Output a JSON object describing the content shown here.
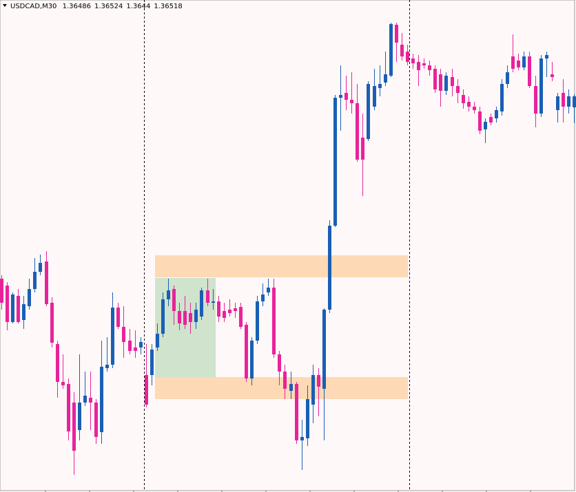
{
  "chart_data": {
    "type": "candlestick",
    "title": "USDCAD,M30",
    "up_color": "#1a5fb4",
    "down_color": "#e8239a",
    "ylim": [
      1.35372,
      1.36798
    ],
    "open": [
      1.35988,
      1.35968,
      1.35862,
      1.35938,
      1.35868,
      1.35908,
      1.35958,
      1.36008,
      1.36038,
      1.35918,
      1.35798,
      1.35688,
      1.35682,
      1.35628,
      1.35548,
      1.35628,
      1.35642,
      1.35628,
      1.35542,
      1.35728,
      1.35738,
      1.35904,
      1.35848,
      1.35808,
      1.35788,
      1.35788,
      1.35708,
      1.35708,
      1.35788,
      1.35828,
      1.35928,
      1.35958,
      1.35894,
      1.35894,
      1.35888,
      1.35862,
      1.35878,
      1.35954,
      1.35918,
      1.35922,
      1.35894,
      1.35898,
      1.35902,
      1.35906,
      1.35854,
      1.35698,
      1.35808,
      1.35922,
      1.35948,
      1.35962,
      1.35768,
      1.35718,
      1.35662,
      1.35682,
      1.35518,
      1.35524,
      1.35622,
      1.35708,
      1.35668,
      1.35898,
      1.36142,
      1.36514,
      1.36528,
      1.36508,
      1.36498,
      1.36398,
      1.36394,
      1.36488,
      1.36542,
      1.36558,
      1.36578,
      1.36726,
      1.36668,
      1.36648,
      1.36628,
      1.36618,
      1.36614,
      1.36608,
      1.36598,
      1.36582,
      1.36534,
      1.36574,
      1.36548,
      1.36522,
      1.36502,
      1.36488,
      1.36474,
      1.36422,
      1.36458,
      1.36454,
      1.36474,
      1.36554,
      1.36634,
      1.36622,
      1.36602,
      1.36634,
      1.36548,
      1.36468,
      1.36628,
      1.36582,
      1.36478,
      1.36528,
      1.36488,
      1.36486
    ],
    "high": [
      1.35998,
      1.35978,
      1.35948,
      1.35958,
      1.35938,
      1.35988,
      1.36048,
      1.36058,
      1.36068,
      1.35934,
      1.35808,
      1.35768,
      1.35698,
      1.35658,
      1.35768,
      1.35718,
      1.35718,
      1.35638,
      1.35808,
      1.35818,
      1.35948,
      1.35918,
      1.35908,
      1.35842,
      1.35838,
      1.35818,
      1.35798,
      1.35798,
      1.35858,
      1.35948,
      1.35988,
      1.35968,
      1.35918,
      1.35938,
      1.35918,
      1.35918,
      1.35962,
      1.35988,
      1.35958,
      1.35938,
      1.35918,
      1.35928,
      1.35918,
      1.35918,
      1.35862,
      1.35818,
      1.35938,
      1.35974,
      1.35988,
      1.35988,
      1.35778,
      1.35738,
      1.35718,
      1.35688,
      1.35578,
      1.35678,
      1.35738,
      1.35728,
      1.35902,
      1.36158,
      1.36522,
      1.36608,
      1.36578,
      1.36588,
      1.36554,
      1.36468,
      1.36562,
      1.36598,
      1.36608,
      1.36648,
      1.36732,
      1.36732,
      1.36702,
      1.36668,
      1.36642,
      1.36638,
      1.36628,
      1.36622,
      1.36608,
      1.36598,
      1.36588,
      1.36598,
      1.36568,
      1.36538,
      1.36518,
      1.36502,
      1.36488,
      1.36454,
      1.36468,
      1.36488,
      1.36568,
      1.36608,
      1.36698,
      1.36642,
      1.36648,
      1.36648,
      1.36578,
      1.36638,
      1.36648,
      1.36618,
      1.36528,
      1.36568,
      1.36538,
      1.36524
    ],
    "low": [
      1.35898,
      1.35838,
      1.35858,
      1.35858,
      1.35842,
      1.35898,
      1.35948,
      1.35998,
      1.35908,
      1.35788,
      1.35642,
      1.35668,
      1.35518,
      1.35418,
      1.35518,
      1.35618,
      1.35548,
      1.35508,
      1.35508,
      1.35718,
      1.35728,
      1.35842,
      1.35758,
      1.35768,
      1.35758,
      1.35768,
      1.35614,
      1.35678,
      1.35778,
      1.35818,
      1.35908,
      1.35854,
      1.35838,
      1.35842,
      1.35828,
      1.35842,
      1.35868,
      1.35908,
      1.35898,
      1.35862,
      1.35862,
      1.35878,
      1.35874,
      1.35842,
      1.35688,
      1.35678,
      1.35798,
      1.35908,
      1.35938,
      1.35758,
      1.35678,
      1.35638,
      1.35638,
      1.35508,
      1.35432,
      1.35502,
      1.35568,
      1.35588,
      1.35518,
      1.35888,
      1.36138,
      1.36418,
      1.36478,
      1.36468,
      1.36328,
      1.36228,
      1.36388,
      1.36478,
      1.36518,
      1.36548,
      1.36574,
      1.36618,
      1.36622,
      1.36608,
      1.36598,
      1.36548,
      1.36598,
      1.36578,
      1.36528,
      1.36488,
      1.36522,
      1.36518,
      1.36498,
      1.36482,
      1.36474,
      1.36468,
      1.36408,
      1.36382,
      1.36434,
      1.36442,
      1.36462,
      1.36542,
      1.36588,
      1.36594,
      1.36594,
      1.36542,
      1.36428,
      1.36458,
      1.36574,
      1.36562,
      1.36442,
      1.36442,
      1.36468,
      1.3644
    ],
    "close": [
      1.35918,
      1.35862,
      1.35942,
      1.35862,
      1.35914,
      1.35958,
      1.36008,
      1.36034,
      1.35914,
      1.35802,
      1.35688,
      1.35678,
      1.35544,
      1.35488,
      1.35628,
      1.35648,
      1.35628,
      1.35528,
      1.35732,
      1.35738,
      1.35904,
      1.35848,
      1.35804,
      1.35778,
      1.35778,
      1.35804,
      1.35622,
      1.35782,
      1.35828,
      1.35928,
      1.35954,
      1.35894,
      1.35858,
      1.35854,
      1.35862,
      1.35898,
      1.35954,
      1.35918,
      1.35922,
      1.35878,
      1.35874,
      1.35888,
      1.35894,
      1.35848,
      1.35698,
      1.35808,
      1.35922,
      1.35942,
      1.35962,
      1.35768,
      1.35718,
      1.35668,
      1.35682,
      1.35518,
      1.35528,
      1.35638,
      1.35708,
      1.35674,
      1.35898,
      1.36142,
      1.36514,
      1.36522,
      1.36508,
      1.36498,
      1.36334,
      1.36334,
      1.36554,
      1.36548,
      1.36554,
      1.36582,
      1.36728,
      1.36674,
      1.36634,
      1.36618,
      1.36614,
      1.36594,
      1.36608,
      1.36594,
      1.36538,
      1.36534,
      1.36578,
      1.36548,
      1.36528,
      1.36498,
      1.36488,
      1.36478,
      1.36418,
      1.36444,
      1.36442,
      1.36478,
      1.36554,
      1.36588,
      1.36598,
      1.36602,
      1.36634,
      1.36548,
      1.36468,
      1.36628,
      1.36638,
      1.36574,
      1.36518,
      1.36488,
      1.36518,
      1.36518
    ]
  }
}
